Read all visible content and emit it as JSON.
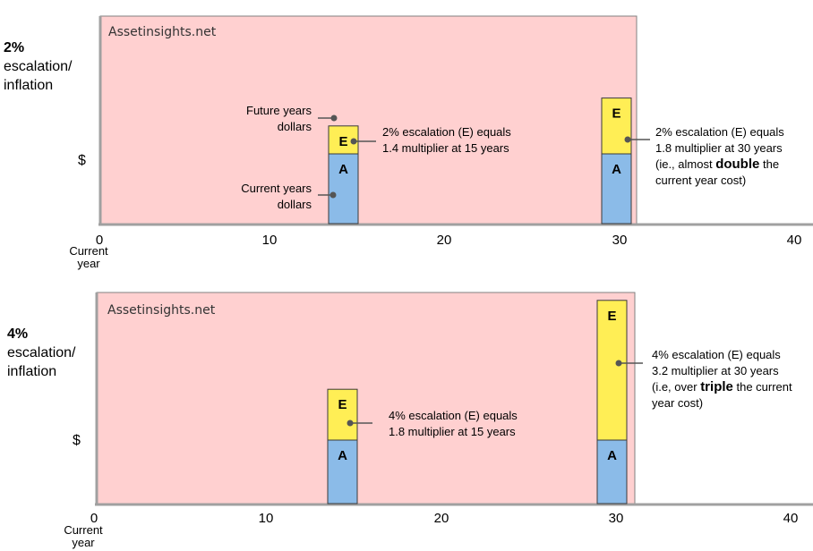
{
  "watermark": "Assetinsights.net",
  "colors": {
    "plot_bg": "#ffd0d0",
    "plot_border": "#808080",
    "current": "#8bbbe8",
    "escalation": "#ffee55",
    "bar_edge": "#3a3a3a",
    "axis": "#a0a0a0",
    "pointer": "#555555"
  },
  "chart_data": [
    {
      "type": "bar",
      "side_label": [
        "2%",
        "escalation/",
        "inflation"
      ],
      "ylabel": "$",
      "x_ticks": [
        "0",
        "10",
        "20",
        "30",
        "40"
      ],
      "x_origin_sub": [
        "Current",
        "year"
      ],
      "xlim": [
        0,
        40
      ],
      "stack_labels": {
        "base": "A",
        "top": "E"
      },
      "bars": [
        {
          "year": 15,
          "current": 1.0,
          "multiplier": 1.4
        },
        {
          "year": 30,
          "current": 1.0,
          "multiplier": 1.8
        }
      ],
      "annotations": [
        {
          "lines": [
            "Future years",
            "dollars"
          ],
          "align": "right"
        },
        {
          "lines": [
            "Current years",
            "dollars"
          ],
          "align": "right"
        },
        {
          "lines": [
            "2% escalation (E) equals",
            "1.4 multiplier at 15 years"
          ]
        },
        {
          "lines": [
            "2% escalation (E) equals",
            "1.8 multiplier at 30 years",
            "(ie., almost |double| the",
            "current year cost)"
          ]
        }
      ]
    },
    {
      "type": "bar",
      "side_label": [
        "4%",
        "escalation/",
        "inflation"
      ],
      "ylabel": "$",
      "x_ticks": [
        "0",
        "10",
        "20",
        "30",
        "40"
      ],
      "x_origin_sub": [
        "Current",
        "year"
      ],
      "xlim": [
        0,
        40
      ],
      "stack_labels": {
        "base": "A",
        "top": "E"
      },
      "bars": [
        {
          "year": 15,
          "current": 1.0,
          "multiplier": 1.8
        },
        {
          "year": 30,
          "current": 1.0,
          "multiplier": 3.2
        }
      ],
      "annotations": [
        {
          "lines": [
            "4% escalation (E) equals",
            "1.8 multiplier at 15 years"
          ]
        },
        {
          "lines": [
            "4% escalation (E) equals",
            "3.2 multiplier at 30 years",
            "(i.e, over |triple| the current",
            "year cost)"
          ]
        }
      ]
    }
  ]
}
